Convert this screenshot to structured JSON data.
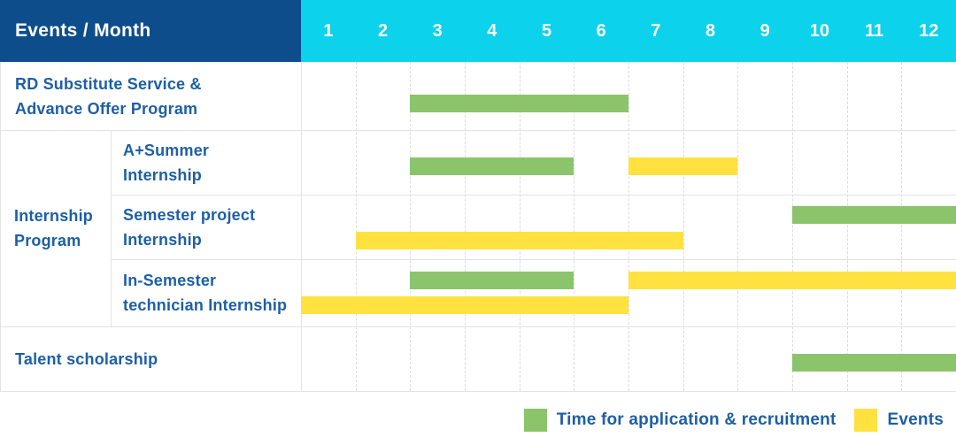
{
  "header": {
    "title": "Events / Month"
  },
  "colors": {
    "header_navy": "#0D4D8C",
    "header_cyan": "#0CD2EC",
    "label_blue": "#1D5FA6",
    "application_green": "#8BC46B",
    "events_yellow": "#FFE23F",
    "grid_gray": "#e3e3e3"
  },
  "chart_data": {
    "type": "bar",
    "subtype": "gantt-timeline",
    "x_axis_label": "Month",
    "x_categories": [
      "1",
      "2",
      "3",
      "4",
      "5",
      "6",
      "7",
      "8",
      "9",
      "10",
      "11",
      "12"
    ],
    "xlim": [
      1,
      12
    ],
    "grid": "dashed-vertical-month-lines",
    "legend_position": "bottom-right",
    "legend": [
      {
        "key": "application",
        "color": "#8BC46B",
        "label": "Time for application & recruitment"
      },
      {
        "key": "event",
        "color": "#FFE23F",
        "label": "Events"
      }
    ],
    "group_label_lines": [
      "Internship",
      "Program"
    ],
    "rows": [
      {
        "label_lines": [
          "RD Substitute Service &",
          "Advance Offer Program"
        ],
        "group": null,
        "bars": [
          {
            "type": "application",
            "lane": 0,
            "start_month": 3,
            "end_month": 6
          }
        ]
      },
      {
        "label_lines": [
          "A+Summer",
          "Internship"
        ],
        "group": "Internship Program",
        "bars": [
          {
            "type": "application",
            "lane": 0,
            "start_month": 3,
            "end_month": 5
          },
          {
            "type": "event",
            "lane": 0,
            "start_month": 7,
            "end_month": 8
          }
        ]
      },
      {
        "label_lines": [
          "Semester project",
          "Internship"
        ],
        "group": "Internship Program",
        "bars": [
          {
            "type": "application",
            "lane": 0,
            "start_month": 10,
            "end_month": 12
          },
          {
            "type": "event",
            "lane": 1,
            "start_month": 2,
            "end_month": 7
          }
        ]
      },
      {
        "label_lines": [
          "In-Semester",
          "technician Internship"
        ],
        "group": "Internship Program",
        "bars": [
          {
            "type": "application",
            "lane": 0,
            "start_month": 3,
            "end_month": 5
          },
          {
            "type": "event",
            "lane": 0,
            "start_month": 7,
            "end_month": 12
          },
          {
            "type": "event",
            "lane": 1,
            "start_month": 1,
            "end_month": 6
          }
        ]
      },
      {
        "label_lines": [
          "Talent scholarship"
        ],
        "group": null,
        "bars": [
          {
            "type": "application",
            "lane": 0,
            "start_month": 10,
            "end_month": 12
          }
        ]
      }
    ]
  }
}
